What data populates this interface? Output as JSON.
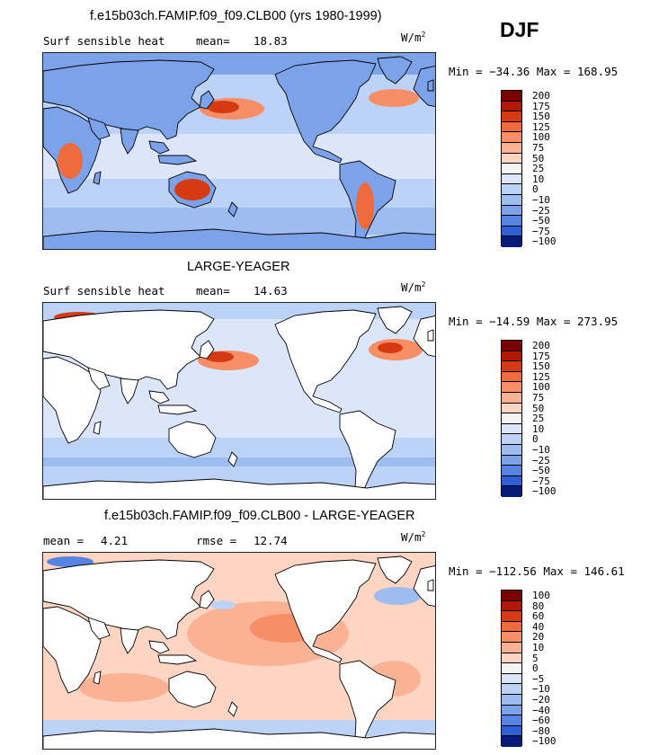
{
  "season": "DJF",
  "units_base": "W/m",
  "units_exp": "2",
  "colors": {
    "pos": [
      "#7a0000",
      "#b01800",
      "#d63a12",
      "#ef6a3d",
      "#f78e66",
      "#fbb294",
      "#fdd5c2"
    ],
    "neutral": "#f4f4f4",
    "neg": [
      "#dbe6fb",
      "#bcd2f7",
      "#9dbcf0",
      "#7ca2ea",
      "#5784e2",
      "#3060d6",
      "#163cbf",
      "#061a7a"
    ],
    "land": "#ffffff",
    "coast": "#000000"
  },
  "panels": [
    {
      "title": "f.e15b03ch.FAMIP.f09_f09.CLB00 (yrs 1980-1999)",
      "left_label": "Surf sensible heat",
      "stat_label": "mean=",
      "stat_value": "18.83",
      "minmax": "Min = −34.36 Max = 168.95",
      "levels": [
        "200",
        "175",
        "150",
        "125",
        "100",
        "75",
        "50",
        "25",
        "10",
        "0",
        "−10",
        "−25",
        "−50",
        "−75",
        "−100"
      ]
    },
    {
      "title": "LARGE-YEAGER",
      "left_label": "Surf sensible heat",
      "stat_label": "mean=",
      "stat_value": "14.63",
      "minmax": "Min = −14.59 Max = 273.95",
      "levels": [
        "200",
        "175",
        "150",
        "125",
        "100",
        "75",
        "50",
        "25",
        "10",
        "0",
        "−10",
        "−25",
        "−50",
        "−75",
        "−100"
      ]
    },
    {
      "title": "f.e15b03ch.FAMIP.f09_f09.CLB00 - LARGE-YEAGER",
      "left_label": "mean =",
      "left_value": "4.21",
      "stat_label": "rmse =",
      "stat_value": "12.74",
      "minmax": "Min = −112.56 Max = 146.61",
      "levels": [
        "100",
        "80",
        "60",
        "40",
        "20",
        "10",
        "5",
        "0",
        "−5",
        "−10",
        "−20",
        "−40",
        "−60",
        "−80",
        "−100"
      ]
    }
  ]
}
